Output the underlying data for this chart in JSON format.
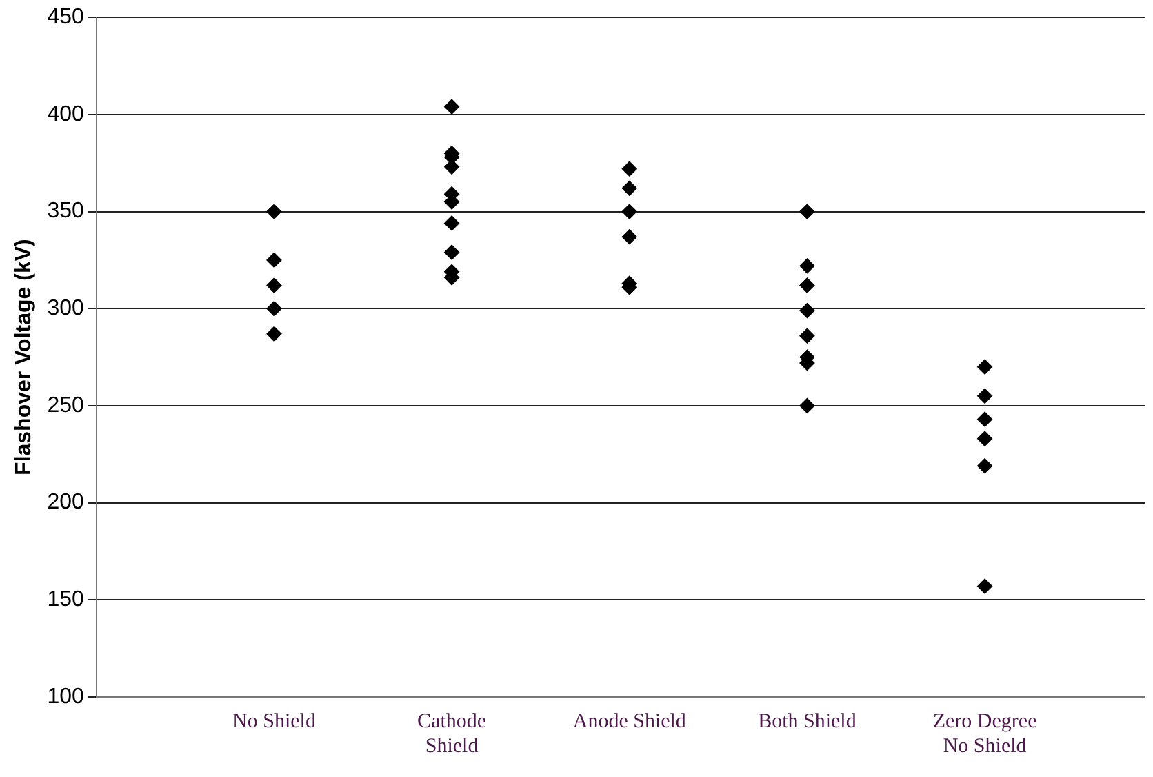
{
  "chart_data": {
    "type": "scatter",
    "ylabel": "Flashover Voltage (kV)",
    "categories": [
      "No Shield",
      "Cathode Shield",
      "Anode Shield",
      "Both Shield",
      "Zero Degree No Shield"
    ],
    "series": [
      {
        "color": "#000000",
        "x": [
          "No Shield",
          "No Shield",
          "No Shield",
          "No Shield",
          "No Shield",
          "Cathode Shield",
          "Cathode Shield",
          "Cathode Shield",
          "Cathode Shield",
          "Cathode Shield",
          "Cathode Shield",
          "Cathode Shield",
          "Cathode Shield",
          "Cathode Shield",
          "Cathode Shield",
          "Anode Shield",
          "Anode Shield",
          "Anode Shield",
          "Anode Shield",
          "Anode Shield",
          "Anode Shield",
          "Both Shield",
          "Both Shield",
          "Both Shield",
          "Both Shield",
          "Both Shield",
          "Both Shield",
          "Both Shield",
          "Both Shield",
          "Zero Degree No Shield",
          "Zero Degree No Shield",
          "Zero Degree No Shield",
          "Zero Degree No Shield",
          "Zero Degree No Shield",
          "Zero Degree No Shield"
        ],
        "values": [
          350,
          325,
          312,
          300,
          287,
          404,
          380,
          378,
          373,
          359,
          355,
          344,
          329,
          319,
          316,
          372,
          362,
          350,
          337,
          313,
          311,
          350,
          322,
          312,
          299,
          286,
          275,
          272,
          250,
          270,
          255,
          243,
          233,
          219,
          157
        ]
      }
    ],
    "ylim": [
      100,
      450
    ],
    "yticks": [
      100,
      150,
      200,
      250,
      300,
      350,
      400,
      450
    ],
    "grid": "y",
    "marker": "diamond",
    "legend": false
  }
}
